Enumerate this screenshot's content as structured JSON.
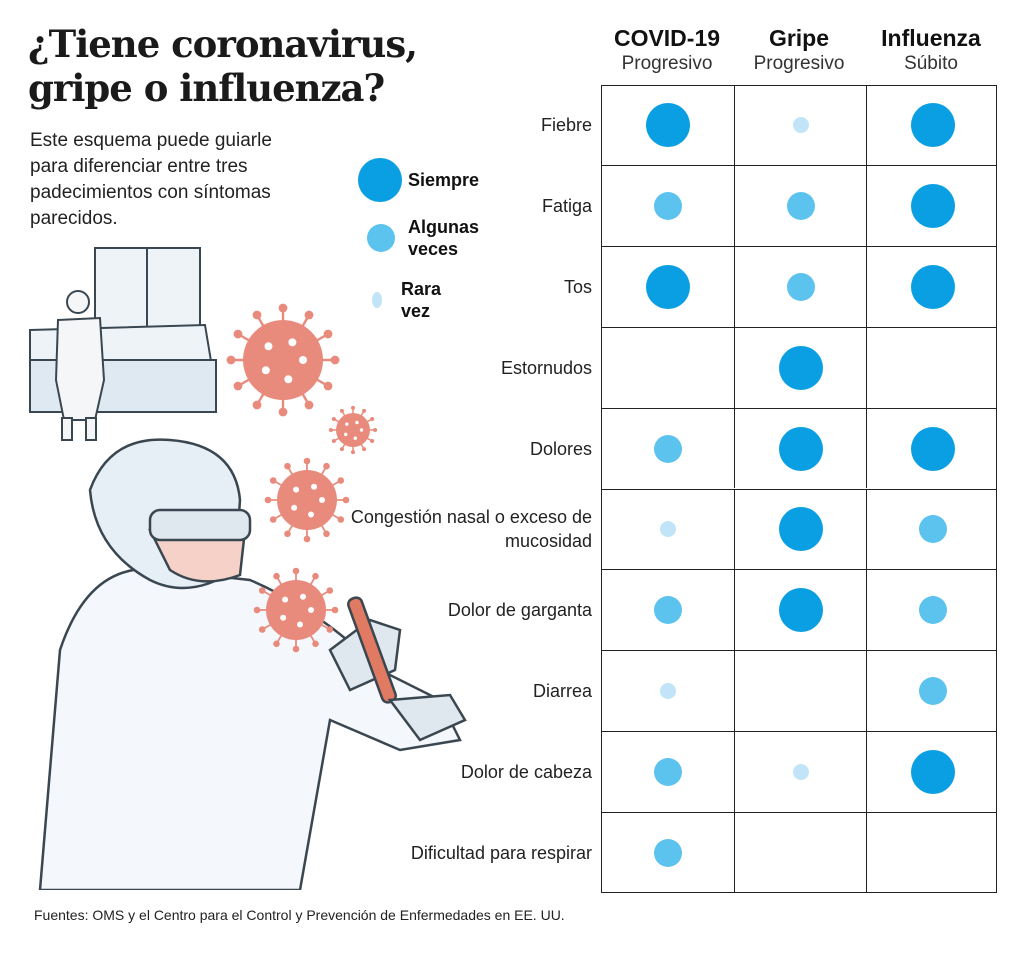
{
  "title": [
    "¿Tiene coronavirus,",
    "gripe o influenza?"
  ],
  "intro": "Este esquema puede guiarle para diferenciar entre tres padecimientos con síntomas parecidos.",
  "legend": [
    {
      "label": "Siempre",
      "level": 3
    },
    {
      "label": "Algunas veces",
      "level": 2
    },
    {
      "label": "Rara vez",
      "level": 1
    }
  ],
  "colors": {
    "level3": "#0a9fe2",
    "level2": "#5cc3ef",
    "level1": "#c2e4f8",
    "virus": "#e98b7c"
  },
  "chart_data": {
    "type": "table",
    "columns": [
      {
        "name": "COVID-19",
        "onset": "Progresivo"
      },
      {
        "name": "Gripe",
        "onset": "Progresivo"
      },
      {
        "name": "Influenza",
        "onset": "Súbito"
      }
    ],
    "scale": {
      "0": "No",
      "1": "Rara vez",
      "2": "Algunas veces",
      "3": "Siempre"
    },
    "rows": [
      {
        "symptom": "Fiebre",
        "values": [
          3,
          1,
          3
        ]
      },
      {
        "symptom": "Fatiga",
        "values": [
          2,
          2,
          3
        ]
      },
      {
        "symptom": "Tos",
        "values": [
          3,
          2,
          3
        ]
      },
      {
        "symptom": "Estornudos",
        "values": [
          0,
          3,
          0
        ]
      },
      {
        "symptom": "Dolores",
        "values": [
          2,
          3,
          3
        ]
      },
      {
        "symptom": "Congestión nasal o exceso de mucosidad",
        "values": [
          1,
          3,
          2
        ]
      },
      {
        "symptom": "Dolor de garganta",
        "values": [
          2,
          3,
          2
        ]
      },
      {
        "symptom": "Diarrea",
        "values": [
          1,
          0,
          2
        ]
      },
      {
        "symptom": "Dolor de cabeza",
        "values": [
          2,
          1,
          3
        ]
      },
      {
        "symptom": "Dificultad para respirar",
        "values": [
          2,
          0,
          0
        ]
      }
    ]
  },
  "source": "Fuentes: OMS y el Centro para el Control y Prevención de Enfermedades en EE. UU."
}
